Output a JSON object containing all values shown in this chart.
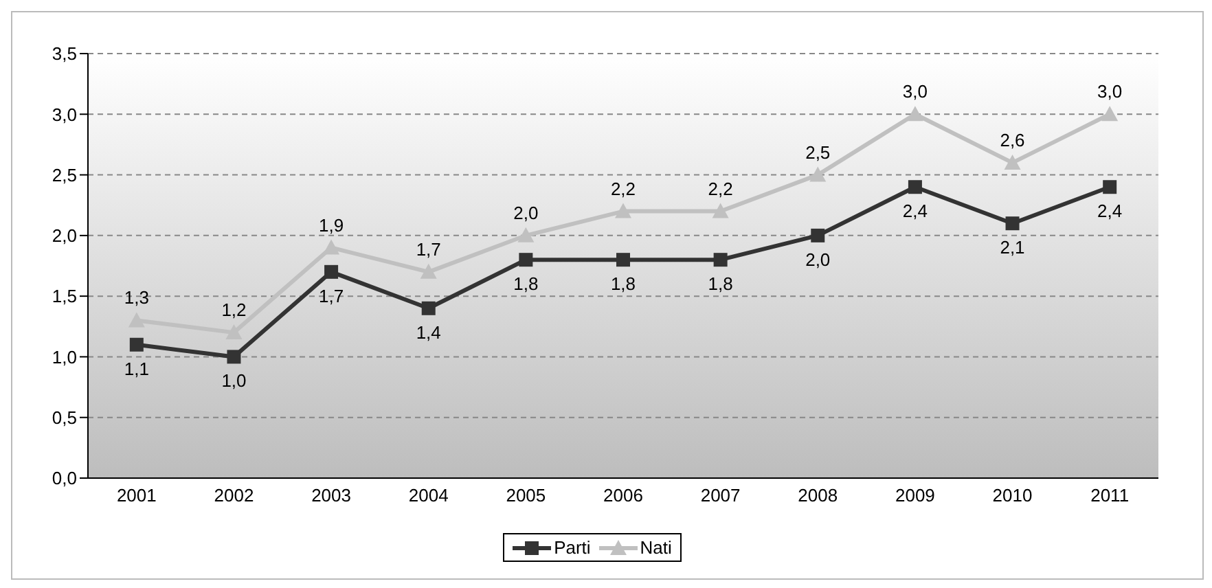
{
  "chart_data": {
    "type": "line",
    "categories": [
      "2001",
      "2002",
      "2003",
      "2004",
      "2005",
      "2006",
      "2007",
      "2008",
      "2009",
      "2010",
      "2011"
    ],
    "series": [
      {
        "name": "Parti",
        "color": "#333333",
        "marker": "square",
        "values": [
          1.1,
          1.0,
          1.7,
          1.4,
          1.8,
          1.8,
          1.8,
          2.0,
          2.4,
          2.1,
          2.4
        ],
        "value_labels": [
          "1,1",
          "1,0",
          "1,7",
          "1,4",
          "1,8",
          "1,8",
          "1,8",
          "2,0",
          "2,4",
          "2,1",
          "2,4"
        ]
      },
      {
        "name": "Nati",
        "color": "#c0c0c0",
        "marker": "triangle",
        "values": [
          1.3,
          1.2,
          1.9,
          1.7,
          2.0,
          2.2,
          2.2,
          2.5,
          3.0,
          2.6,
          3.0
        ],
        "value_labels": [
          "1,3",
          "1,2",
          "1,9",
          "1,7",
          "2,0",
          "2,2",
          "2,2",
          "2,5",
          "3,0",
          "2,6",
          "3,0"
        ]
      }
    ],
    "ylim": [
      0,
      3.5
    ],
    "yticks": [
      {
        "value": 0,
        "label": "0,0"
      },
      {
        "value": 0.5,
        "label": "0,5"
      },
      {
        "value": 1,
        "label": "1,0"
      },
      {
        "value": 1.5,
        "label": "1,5"
      },
      {
        "value": 2,
        "label": "2,0"
      },
      {
        "value": 2.5,
        "label": "2,5"
      },
      {
        "value": 3,
        "label": "3,0"
      },
      {
        "value": 3.5,
        "label": "3,5"
      }
    ],
    "grid": "y",
    "legend": "bottom"
  }
}
